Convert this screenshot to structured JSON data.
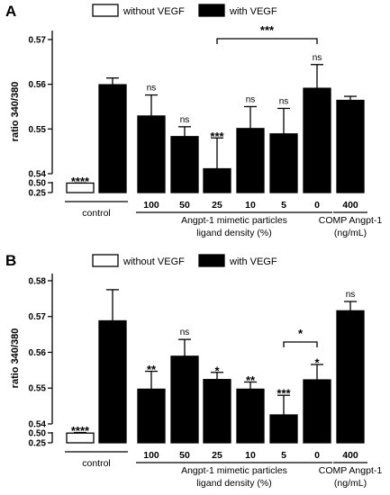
{
  "legend": {
    "without_label": "without VEGF",
    "with_label": "with VEGF"
  },
  "colors": {
    "with": "#000000",
    "without": "#ffffff",
    "stroke": "#000000"
  },
  "xaxis": {
    "categories": [
      "",
      "",
      "100",
      "50",
      "25",
      "10",
      "5",
      "0",
      "400"
    ],
    "group_labels": {
      "control": "control",
      "particles_line1": "Angpt-1 mimetic particles",
      "particles_line2": "ligand density (%)",
      "comp_line1": "COMP Angpt-1",
      "comp_line2": "(ng/mL)"
    }
  },
  "chart_data": [
    {
      "type": "bar",
      "panel": "A",
      "ylabel": "ratio 340/380",
      "yticks_upper": [
        "0.54",
        "0.55",
        "0.56",
        "0.57"
      ],
      "yticks_lower": [
        "0.25",
        "0.50"
      ],
      "ylim_upper": [
        0.54,
        0.572
      ],
      "ylim_lower": [
        0.25,
        0.5
      ],
      "bars": [
        {
          "fill": "without",
          "value": 0.49,
          "error": 0.003,
          "annotation": "****"
        },
        {
          "fill": "with",
          "value": 0.5599,
          "error": 0.0015,
          "annotation": ""
        },
        {
          "fill": "with",
          "value": 0.5529,
          "error": 0.0047,
          "annotation": "ns"
        },
        {
          "fill": "with",
          "value": 0.5483,
          "error": 0.0022,
          "annotation": "ns"
        },
        {
          "fill": "with",
          "value": 0.5411,
          "error": 0.0069,
          "annotation": "***"
        },
        {
          "fill": "with",
          "value": 0.5501,
          "error": 0.0049,
          "annotation": "ns"
        },
        {
          "fill": "with",
          "value": 0.5489,
          "error": 0.0057,
          "annotation": "ns"
        },
        {
          "fill": "with",
          "value": 0.5591,
          "error": 0.0053,
          "annotation": "ns"
        },
        {
          "fill": "with",
          "value": 0.5564,
          "error": 0.0009,
          "annotation": ""
        }
      ],
      "bracket": {
        "from": 4,
        "to": 7,
        "label": "***"
      }
    },
    {
      "type": "bar",
      "panel": "B",
      "ylabel": "ratio 340/380",
      "yticks_upper": [
        "0.54",
        "0.55",
        "0.56",
        "0.57",
        "0.58"
      ],
      "yticks_lower": [
        "0.25",
        "0.50"
      ],
      "ylim_upper": [
        0.54,
        0.582
      ],
      "ylim_lower": [
        0.25,
        0.5
      ],
      "bars": [
        {
          "fill": "without",
          "value": 0.495,
          "error": 0.015,
          "annotation": "****"
        },
        {
          "fill": "with",
          "value": 0.5688,
          "error": 0.0087,
          "annotation": ""
        },
        {
          "fill": "with",
          "value": 0.5497,
          "error": 0.005,
          "annotation": "**"
        },
        {
          "fill": "with",
          "value": 0.5589,
          "error": 0.0047,
          "annotation": "ns"
        },
        {
          "fill": "with",
          "value": 0.5524,
          "error": 0.002,
          "annotation": "*"
        },
        {
          "fill": "with",
          "value": 0.5497,
          "error": 0.002,
          "annotation": "**"
        },
        {
          "fill": "with",
          "value": 0.5425,
          "error": 0.0055,
          "annotation": "***"
        },
        {
          "fill": "with",
          "value": 0.5523,
          "error": 0.0043,
          "annotation": "*"
        },
        {
          "fill": "with",
          "value": 0.5716,
          "error": 0.0026,
          "annotation": "ns"
        }
      ],
      "bracket": {
        "from": 6,
        "to": 7,
        "label": "*"
      }
    }
  ]
}
